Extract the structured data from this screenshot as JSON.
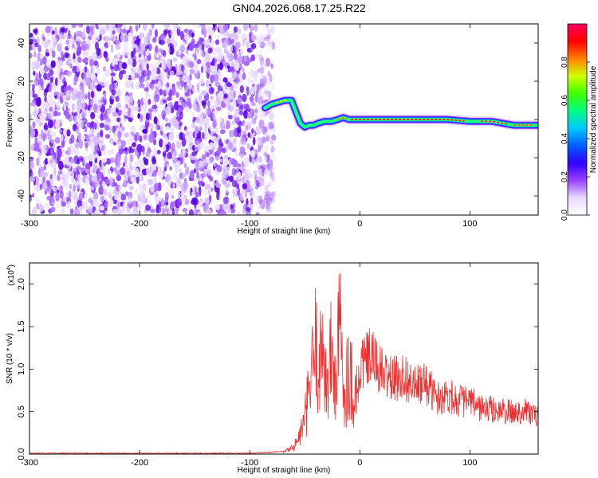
{
  "page": {
    "title": "GN04.2026.068.17.25.R22"
  },
  "chart_data": [
    {
      "type": "heatmap",
      "title": "GN04.2026.068.17.25.R22",
      "xlabel": "Height of straight line (km)",
      "ylabel": "Frequency (Hz)",
      "xlim": [
        -300,
        162
      ],
      "ylim": [
        -50,
        50
      ],
      "x_ticks": [
        -300,
        -200,
        -100,
        0,
        100
      ],
      "y_ticks": [
        -40,
        -20,
        0,
        20,
        40
      ],
      "colorbar": {
        "label": "Normalized spectral amplitude",
        "range": [
          0.0,
          1.0
        ],
        "ticks": [
          "0.0",
          "0.2",
          "0.4",
          "0.6",
          "0.8"
        ],
        "colormap": [
          "#ffffff",
          "#e8d8ff",
          "#9b40ff",
          "#3000ff",
          "#0060ff",
          "#00c8ff",
          "#00ff80",
          "#40ff00",
          "#d0ff00",
          "#ff8000",
          "#ff0000",
          "#ff0060"
        ]
      },
      "noise_region": {
        "x_range": [
          -300,
          -78
        ],
        "y_range": [
          -50,
          50
        ]
      },
      "signal_track": {
        "x": [
          -86,
          -80,
          -74,
          -68,
          -62,
          -58,
          -54,
          -50,
          -46,
          -42,
          -38,
          -32,
          -26,
          -20,
          -15,
          -10,
          -5,
          0,
          20,
          40,
          60,
          80,
          100,
          110,
          120,
          130,
          140,
          150,
          162
        ],
        "y": [
          6,
          8,
          9,
          10,
          10,
          4,
          -2,
          -4,
          -3,
          -3,
          -2,
          -1,
          -1,
          0,
          1,
          0,
          0,
          0,
          0,
          0,
          0,
          0,
          -1,
          -1,
          -1,
          -2,
          -3,
          -3,
          -3
        ]
      },
      "grid": false
    },
    {
      "type": "line",
      "xlabel": "Height of straight line (km)",
      "ylabel": "SNR (10 * v/v)",
      "y_multiplier": "(x10",
      "y_multiplier_exp": "4",
      "y_multiplier_close": ")",
      "xlim": [
        -300,
        162
      ],
      "ylim": [
        0,
        2.25
      ],
      "x_ticks": [
        -300,
        -200,
        -100,
        0,
        100
      ],
      "y_ticks": [
        "0.0",
        "0.5",
        "1.0",
        "1.5",
        "2.0"
      ],
      "line_color": "#ee3030",
      "series": [
        {
          "x": [
            -300,
            -200,
            -100,
            -70,
            -60,
            -55,
            -50,
            -45,
            -40,
            -36,
            -33,
            -30,
            -26,
            -22,
            -18,
            -14,
            -10,
            -5,
            0,
            10,
            20,
            30,
            40,
            50,
            60,
            70,
            80,
            90,
            100,
            110,
            120,
            130,
            140,
            150,
            160
          ],
          "values": [
            0.01,
            0.01,
            0.01,
            0.03,
            0.12,
            0.3,
            0.6,
            1.2,
            1.9,
            1.5,
            2.15,
            1.0,
            1.75,
            1.2,
            2.25,
            1.0,
            1.55,
            1.0,
            1.2,
            1.3,
            1.1,
            1.0,
            1.05,
            0.9,
            0.95,
            0.75,
            0.8,
            0.72,
            0.7,
            0.62,
            0.6,
            0.58,
            0.55,
            0.6,
            0.5
          ]
        }
      ],
      "grid": false
    }
  ]
}
